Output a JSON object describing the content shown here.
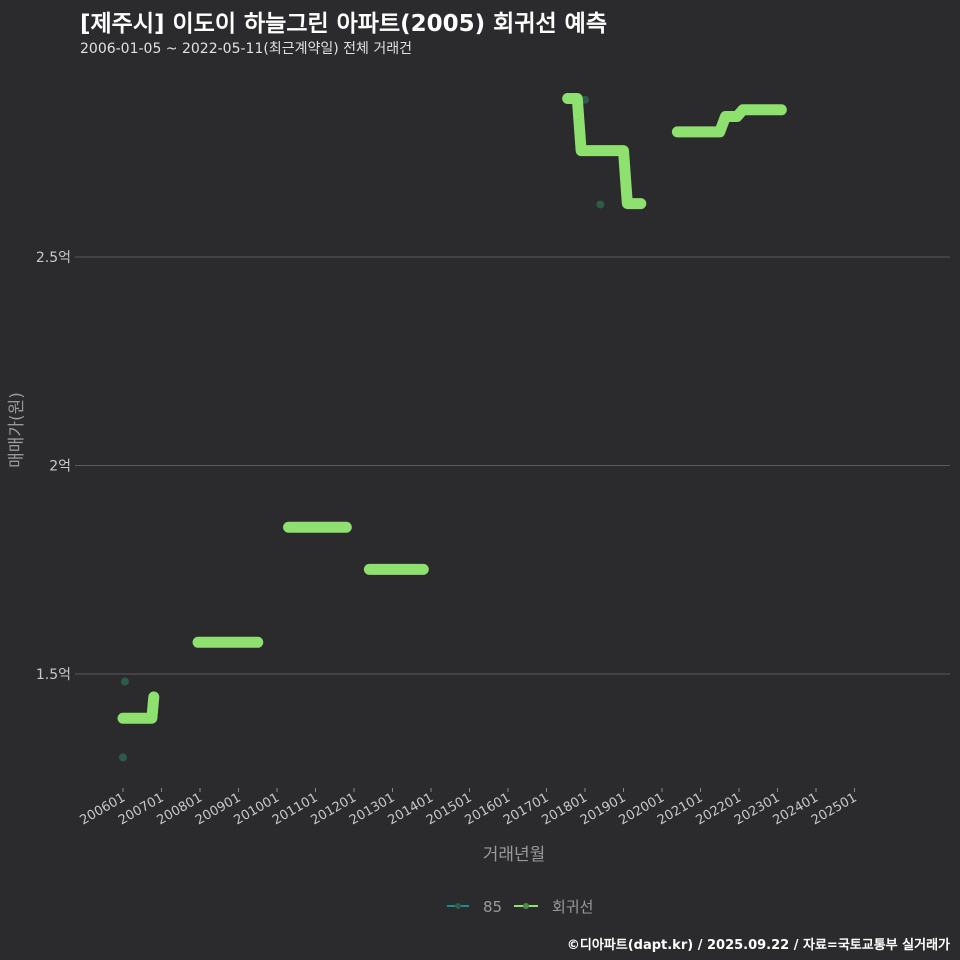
{
  "title": "[제주시] 이도이 하늘그린 아파트(2005) 회귀선 예측",
  "subtitle": "2006-01-05 ~ 2022-05-11(최근계약일) 전체 거래건",
  "footer": "©디아파트(dapt.kr) / 2025.09.22 / 자료=국토교통부 실거래가",
  "colors": {
    "background": "#2b2b2d",
    "regression": "#8ee06f",
    "points": "#2f5a4a",
    "legend_85": "#1f8a8a",
    "grid": "#5a5a5c"
  },
  "chart_data": {
    "type": "line",
    "title": "[제주시] 이도이 하늘그린 아파트(2005) 회귀선 예측",
    "xlabel": "거래년월",
    "ylabel": "매매가(원)",
    "x_ticks": [
      "200601",
      "200701",
      "200801",
      "200901",
      "201001",
      "201101",
      "201201",
      "201301",
      "201401",
      "201501",
      "201601",
      "201701",
      "201801",
      "201901",
      "202001",
      "202101",
      "202201",
      "202301",
      "202401",
      "202501"
    ],
    "y_ticks": [
      {
        "value": 1.5,
        "label": "1.5억"
      },
      {
        "value": 2.0,
        "label": "2억"
      },
      {
        "value": 2.5,
        "label": "2.5억"
      }
    ],
    "ylim_eok": [
      1.22,
      2.98
    ],
    "xlim_year": [
      2005.9,
      2025.2
    ],
    "legend": {
      "placement": "bottom",
      "entries": [
        "85",
        "회귀선"
      ]
    },
    "series": [
      {
        "name": "85",
        "type": "scatter",
        "points": [
          [
            2006.05,
            1.482
          ],
          [
            2006.0,
            1.3
          ],
          [
            2018.0,
            2.877
          ],
          [
            2018.4,
            2.626
          ]
        ]
      },
      {
        "name": "회귀선",
        "type": "line",
        "segments": [
          [
            [
              2006.0,
              1.394
            ],
            [
              2006.75,
              1.394
            ],
            [
              2006.8,
              1.445
            ]
          ],
          [
            [
              2007.95,
              1.576
            ],
            [
              2009.5,
              1.576
            ]
          ],
          [
            [
              2010.3,
              1.852
            ],
            [
              2011.8,
              1.852
            ]
          ],
          [
            [
              2012.4,
              1.751
            ],
            [
              2013.8,
              1.751
            ]
          ],
          [
            [
              2017.55,
              2.88
            ],
            [
              2017.8,
              2.88
            ],
            [
              2017.9,
              2.755
            ],
            [
              2019.0,
              2.755
            ],
            [
              2019.1,
              2.628
            ],
            [
              2019.45,
              2.628
            ]
          ],
          [
            [
              2020.4,
              2.8
            ],
            [
              2021.5,
              2.8
            ],
            [
              2021.65,
              2.837
            ],
            [
              2021.95,
              2.837
            ],
            [
              2022.1,
              2.853
            ],
            [
              2023.1,
              2.853
            ]
          ]
        ]
      }
    ]
  }
}
